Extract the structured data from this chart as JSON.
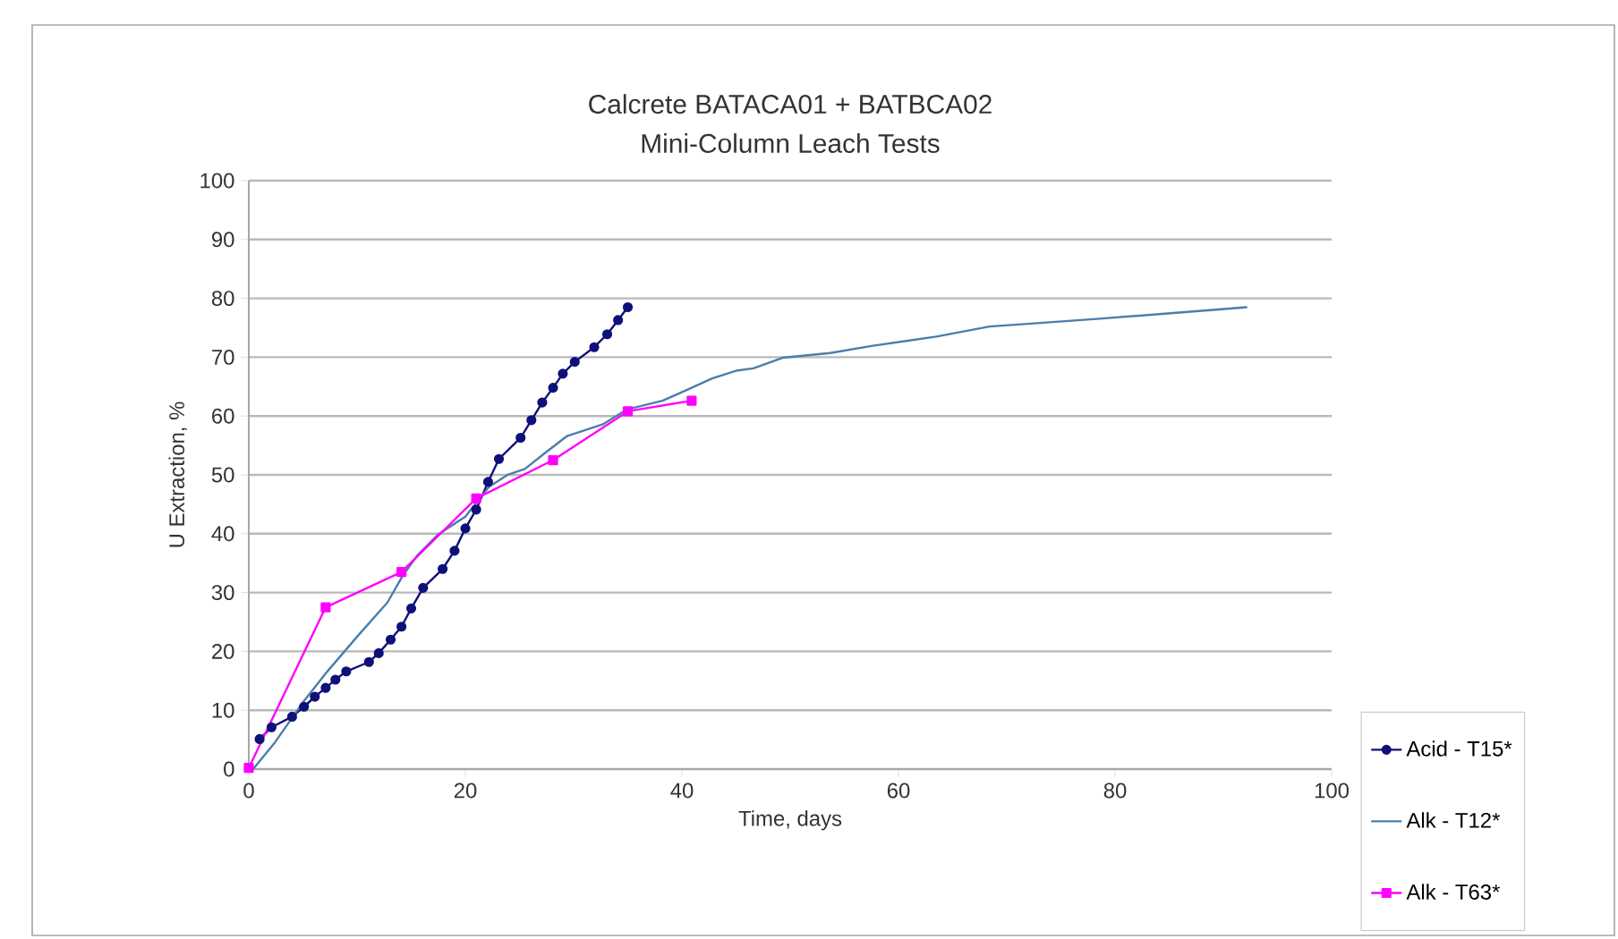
{
  "chart_data": {
    "type": "line",
    "title": "Calcrete BATACA01 + BATBCA02",
    "subtitle": "Mini-Column Leach Tests",
    "xlabel": "Time, days",
    "ylabel": "U Extraction, %",
    "xlim": [
      0,
      100
    ],
    "xticks": [
      0,
      20,
      40,
      60,
      80,
      100
    ],
    "ylim": [
      0,
      100
    ],
    "yticks": [
      0,
      10,
      20,
      30,
      40,
      50,
      60,
      70,
      80,
      90,
      100
    ],
    "grid": "y",
    "legend": "right",
    "series": [
      {
        "name": "Acid - T15*",
        "color": "#10107a",
        "marker": "circle",
        "x": [
          1.0,
          2.1,
          4.0,
          5.1,
          6.1,
          7.1,
          8.0,
          9.0,
          11.1,
          12.0,
          13.1,
          14.1,
          15.0,
          16.1,
          17.9,
          19.0,
          20.0,
          21.0,
          22.1,
          23.1,
          25.1,
          26.1,
          27.1,
          28.1,
          29.0,
          30.1,
          31.9,
          33.1,
          34.1,
          35.0
        ],
        "values": [
          5.1,
          7.1,
          8.9,
          10.6,
          12.3,
          13.8,
          15.2,
          16.6,
          18.2,
          19.7,
          22.0,
          24.2,
          27.3,
          30.8,
          34.0,
          37.1,
          40.9,
          44.1,
          48.8,
          52.7,
          56.3,
          59.3,
          62.3,
          64.8,
          67.2,
          69.2,
          71.7,
          73.9,
          76.3,
          78.5
        ]
      },
      {
        "name": "Alk - T12*",
        "color": "#4a7eaa",
        "marker": "none",
        "x": [
          0.4,
          2.4,
          5.1,
          7.3,
          10.1,
          12.8,
          14.2,
          15.6,
          17.5,
          20.0,
          21.1,
          22.2,
          23.9,
          25.5,
          27.2,
          29.4,
          32.7,
          34.9,
          38.2,
          40.3,
          42.8,
          45.0,
          46.6,
          49.3,
          53.7,
          57.5,
          63.5,
          68.4,
          78.3,
          85.4,
          92.2
        ],
        "values": [
          0,
          4.5,
          11.6,
          16.7,
          22.7,
          28.3,
          32.8,
          36.4,
          39.9,
          42.9,
          45.5,
          48.0,
          50.0,
          51.0,
          53.5,
          56.6,
          58.6,
          61.1,
          62.6,
          64.3,
          66.4,
          67.7,
          68.1,
          69.9,
          70.7,
          71.9,
          73.5,
          75.2,
          76.5,
          77.5,
          78.5
        ]
      },
      {
        "name": "Alk - T63*",
        "color": "#ff00ff",
        "marker": "square",
        "x": [
          0,
          7.1,
          14.1,
          21.0,
          28.1,
          35.0,
          40.9
        ],
        "values": [
          0.2,
          27.5,
          33.5,
          46.0,
          52.5,
          60.8,
          62.6
        ]
      }
    ]
  }
}
